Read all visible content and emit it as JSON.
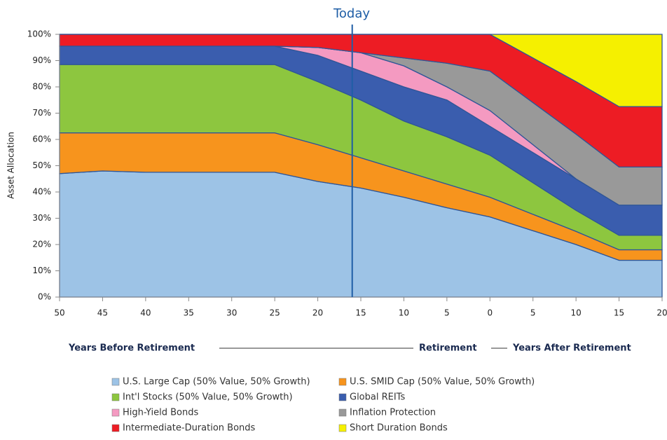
{
  "chart_data": {
    "type": "stacked_area",
    "y_label": "Asset Allocation",
    "x_label_before": "Years Before Retirement",
    "x_label_retirement": "Retirement",
    "x_label_after": "Years After Retirement",
    "today": {
      "label": "Today",
      "x": -16
    },
    "x": [
      -50,
      -45,
      -40,
      -25,
      -20,
      -15,
      -10,
      -5,
      0,
      10,
      15,
      20
    ],
    "series": [
      {
        "name": "U.S. Large Cap (50% Value, 50% Growth)",
        "color": "#9dc3e6",
        "values": [
          47,
          48,
          47.5,
          47.5,
          44,
          41.5,
          38,
          34,
          30.5,
          20,
          14,
          14
        ]
      },
      {
        "name": "U.S. SMID Cap (50% Value, 50% Growth)",
        "color": "#f7941d",
        "values": [
          15.5,
          14.5,
          15,
          15,
          14,
          11.5,
          10,
          9,
          7.5,
          5,
          4,
          4
        ]
      },
      {
        "name": "Int'l Stocks (50% Value, 50% Growth)",
        "color": "#8dc63f",
        "values": [
          26,
          26,
          26,
          26,
          24,
          22,
          19,
          18,
          16,
          8,
          5.5,
          5.5
        ]
      },
      {
        "name": "Global REITs",
        "color": "#3a5dae",
        "values": [
          7,
          7,
          7,
          7,
          10,
          11,
          13,
          14,
          11,
          12,
          11.5,
          11.5
        ]
      },
      {
        "name": "High-Yield Bonds",
        "color": "#f49ac1",
        "values": [
          0,
          0,
          0,
          0,
          3,
          7,
          8,
          5,
          6,
          0,
          0,
          0
        ]
      },
      {
        "name": "Inflation Protection",
        "color": "#999999",
        "values": [
          0,
          0,
          0,
          0,
          0,
          0,
          3,
          9,
          15,
          17,
          14.5,
          14.5
        ]
      },
      {
        "name": "Intermediate-Duration Bonds",
        "color": "#ed1c24",
        "values": [
          4.5,
          4.5,
          4.5,
          4.5,
          5,
          7,
          9,
          11,
          14,
          20,
          23,
          23
        ]
      },
      {
        "name": "Short Duration Bonds",
        "color": "#f5f000",
        "values": [
          0,
          0,
          0,
          0,
          0,
          0,
          0,
          0,
          0,
          18,
          27.5,
          27.5
        ]
      }
    ],
    "xlim": [
      -50,
      20
    ],
    "xticks": [
      {
        "value": -50,
        "label": "50"
      },
      {
        "value": -45,
        "label": "45"
      },
      {
        "value": -40,
        "label": "40"
      },
      {
        "value": -35,
        "label": "35"
      },
      {
        "value": -30,
        "label": "30"
      },
      {
        "value": -25,
        "label": "25"
      },
      {
        "value": -20,
        "label": "20"
      },
      {
        "value": -15,
        "label": "15"
      },
      {
        "value": -10,
        "label": "10"
      },
      {
        "value": -5,
        "label": "5"
      },
      0,
      5,
      10,
      15,
      20
    ],
    "ylim": [
      0,
      100
    ],
    "yticks": [
      {
        "value": 0,
        "label": "0%"
      },
      {
        "value": 10,
        "label": "10%"
      },
      {
        "value": 20,
        "label": "20%"
      },
      {
        "value": 30,
        "label": "30%"
      },
      {
        "value": 40,
        "label": "40%"
      },
      {
        "value": 50,
        "label": "50%"
      },
      {
        "value": 60,
        "label": "60%"
      },
      {
        "value": 70,
        "label": "70%"
      },
      {
        "value": 80,
        "label": "80%"
      },
      {
        "value": 90,
        "label": "90%"
      },
      {
        "value": 100,
        "label": "100%"
      }
    ],
    "grid": false
  }
}
